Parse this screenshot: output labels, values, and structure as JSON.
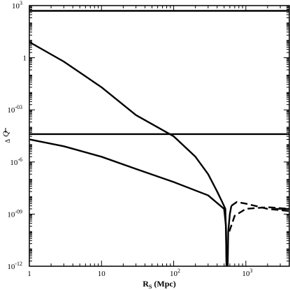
{
  "chart_data": {
    "type": "line",
    "xlabel": {
      "main": "R",
      "sub": "S",
      "rest": " (Mpc)"
    },
    "ylabel": "Δ̄Q̄",
    "ylabel_display": {
      "main": "Q",
      "sub": "Δ"
    },
    "xscale": "log",
    "yscale": "log",
    "xlim": [
      1,
      4000
    ],
    "ylim": [
      1e-12,
      1000
    ],
    "xticks": [
      {
        "value": 1,
        "base": "1",
        "exp": ""
      },
      {
        "value": 10,
        "base": "10",
        "exp": ""
      },
      {
        "value": 100,
        "base": "10",
        "exp": "2"
      },
      {
        "value": 1000,
        "base": "10",
        "exp": "3"
      }
    ],
    "yticks": [
      {
        "value": 1e-12,
        "base": "10",
        "exp": "-12"
      },
      {
        "value": 1e-09,
        "base": "10",
        "exp": "-09"
      },
      {
        "value": 1e-06,
        "base": "10",
        "exp": "-6"
      },
      {
        "value": 0.001,
        "base": "10",
        "exp": "-03"
      },
      {
        "value": 1,
        "base": "1",
        "exp": ""
      },
      {
        "value": 1000,
        "base": "10",
        "exp": "3"
      }
    ],
    "series": [
      {
        "style": "solid",
        "points": [
          [
            1,
            500
          ],
          [
            4000,
            500
          ]
        ]
      },
      {
        "style": "solid",
        "points": [
          [
            1,
            4e-05
          ],
          [
            4000,
            4e-05
          ]
        ]
      },
      {
        "style": "solid",
        "points": [
          [
            1,
            8
          ],
          [
            3,
            0.6
          ],
          [
            10,
            0.02
          ],
          [
            30,
            0.0005
          ],
          [
            100,
            3e-05
          ],
          [
            200,
            2e-06
          ],
          [
            300,
            2e-07
          ],
          [
            400,
            2e-08
          ],
          [
            470,
            5e-09
          ],
          [
            520,
            2e-09
          ],
          [
            530,
            1e-10
          ],
          [
            540,
            1e-12
          ]
        ]
      },
      {
        "style": "solid",
        "points": [
          [
            1,
            2e-05
          ],
          [
            3,
            8e-06
          ],
          [
            10,
            2e-06
          ],
          [
            30,
            4e-07
          ],
          [
            100,
            7e-08
          ],
          [
            300,
            1.2e-08
          ],
          [
            500,
            2e-09
          ],
          [
            530,
            2e-10
          ],
          [
            540,
            1e-12
          ]
        ]
      },
      {
        "style": "solid",
        "points": [
          [
            560,
            1e-12
          ],
          [
            570,
            1e-10
          ],
          [
            600,
            1e-09
          ],
          [
            630,
            3e-09
          ]
        ]
      },
      {
        "style": "dashed",
        "points": [
          [
            630,
            3e-09
          ],
          [
            750,
            5e-09
          ],
          [
            1000,
            4e-09
          ],
          [
            2000,
            2e-09
          ],
          [
            4000,
            1.5e-09
          ]
        ]
      },
      {
        "style": "dashed",
        "points": [
          [
            590,
            1e-10
          ],
          [
            700,
            8e-10
          ],
          [
            1000,
            2e-09
          ],
          [
            2000,
            2.5e-09
          ],
          [
            4000,
            2e-09
          ]
        ]
      },
      {
        "style": "solid",
        "points": [
          [
            2500,
            2e-09
          ],
          [
            4000,
            2e-09
          ]
        ]
      }
    ]
  }
}
